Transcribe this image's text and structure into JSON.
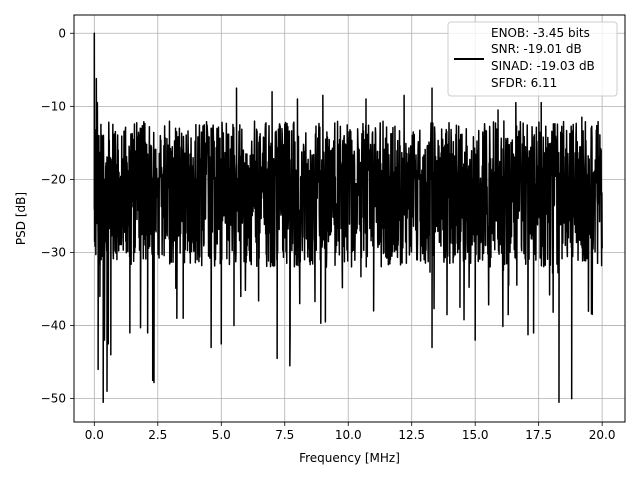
{
  "chart_data": {
    "type": "line",
    "xlabel": "Frequency [MHz]",
    "ylabel": "PSD [dB]",
    "xlim": [
      -0.8,
      20.9
    ],
    "ylim": [
      -53.2,
      2.5
    ],
    "xticks": [
      0.0,
      2.5,
      5.0,
      7.5,
      10.0,
      12.5,
      15.0,
      17.5,
      20.0
    ],
    "xtick_labels": [
      "0.0",
      "2.5",
      "5.0",
      "7.5",
      "10.0",
      "12.5",
      "15.0",
      "17.5",
      "20.0"
    ],
    "yticks": [
      0,
      -10,
      -20,
      -30,
      -40,
      -50
    ],
    "ytick_labels": [
      "0",
      "−10",
      "−20",
      "−30",
      "−40",
      "−50"
    ],
    "grid": true,
    "legend_position": "top-right",
    "legend": [
      "ENOB: -3.45 bits",
      "SNR: -19.01 dB",
      "SINAD: -19.03 dB",
      "SFDR: 6.11"
    ],
    "series": [
      {
        "color": "#000000",
        "x_range": [
          0,
          20
        ],
        "noise_floor_dB": -20,
        "typical_band_dB": [
          -32,
          -12
        ],
        "values": [
          [
            0.0,
            0.0
          ],
          [
            0.05,
            -21.0
          ],
          [
            0.08,
            -6.2
          ],
          [
            0.1,
            -18.0
          ],
          [
            0.12,
            -9.5
          ],
          [
            0.15,
            -46.0
          ],
          [
            0.18,
            -14.0
          ],
          [
            0.22,
            -36.0
          ],
          [
            0.3,
            -16.0
          ],
          [
            0.35,
            -50.5
          ],
          [
            0.4,
            -42.0
          ],
          [
            0.45,
            -22.0
          ],
          [
            0.5,
            -49.0
          ],
          [
            0.55,
            -42.5
          ],
          [
            0.65,
            -44.0
          ],
          [
            0.8,
            -16.5
          ],
          [
            1.2,
            -15.5
          ],
          [
            1.4,
            -41.0
          ],
          [
            1.8,
            -15.0
          ],
          [
            2.1,
            -41.0
          ],
          [
            2.3,
            -47.5
          ],
          [
            2.35,
            -47.8
          ],
          [
            2.6,
            -14.0
          ],
          [
            3.2,
            -13.0
          ],
          [
            3.25,
            -39.0
          ],
          [
            3.5,
            -39.0
          ],
          [
            4.0,
            -12.5
          ],
          [
            4.6,
            -13.0
          ],
          [
            4.6,
            -43.0
          ],
          [
            5.0,
            -42.5
          ],
          [
            5.5,
            -40.0
          ],
          [
            5.6,
            -7.5
          ],
          [
            7.0,
            -8.0
          ],
          [
            7.2,
            -44.5
          ],
          [
            7.7,
            -45.5
          ],
          [
            8.0,
            -9.0
          ],
          [
            9.0,
            -8.5
          ],
          [
            9.1,
            -39.5
          ],
          [
            10.7,
            -9.0
          ],
          [
            11.0,
            -38.0
          ],
          [
            12.2,
            -8.5
          ],
          [
            13.3,
            -7.5
          ],
          [
            13.3,
            -43.0
          ],
          [
            14.4,
            -37.5
          ],
          [
            15.0,
            -42.0
          ],
          [
            15.9,
            -10.5
          ],
          [
            16.3,
            -38.5
          ],
          [
            16.6,
            -9.5
          ],
          [
            17.3,
            -41.0
          ],
          [
            17.6,
            -9.5
          ],
          [
            18.3,
            -50.5
          ],
          [
            18.8,
            -50.0
          ],
          [
            19.2,
            -11.5
          ],
          [
            20.0,
            -29.0
          ]
        ]
      }
    ]
  }
}
